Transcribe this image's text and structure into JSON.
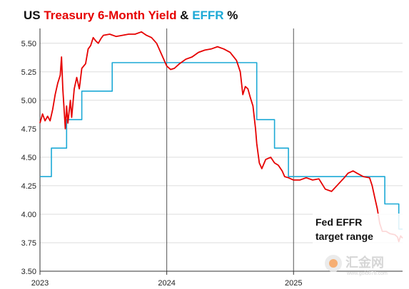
{
  "title": {
    "part1": "US ",
    "part2": "Treasury 6-Month Yield",
    "part3": " & ",
    "part4": "EFFR",
    "part5": " %",
    "colors": {
      "part1": "#111111",
      "part2": "#e60000",
      "part3": "#111111",
      "part4": "#1ca9d6",
      "part5": "#111111"
    }
  },
  "watermark": {
    "name": "汇金网",
    "url": "www.gold678.com"
  },
  "annotation": {
    "line1": "Fed EFFR",
    "line2": "target range"
  },
  "chart_data": {
    "type": "line",
    "title": "US Treasury 6-Month Yield & EFFR %",
    "xlim": [
      2023.0,
      2025.86
    ],
    "ylim": [
      3.5,
      5.63
    ],
    "yticks": [
      "5.50",
      "5.25",
      "5.00",
      "4.75",
      "4.50",
      "4.25",
      "4.00",
      "3.75",
      "3.50"
    ],
    "ytick_values": [
      5.5,
      5.25,
      5.0,
      4.75,
      4.5,
      4.25,
      4.0,
      3.75,
      3.5
    ],
    "xticks": [
      "2023",
      "2024",
      "2025"
    ],
    "xtick_values": [
      2023,
      2024,
      2025
    ],
    "grid": {
      "horizontal": true,
      "vertical": true
    },
    "series": [
      {
        "name": "EFFR",
        "color": "#1ca9d6",
        "step": true,
        "points": [
          [
            2023.0,
            4.33
          ],
          [
            2023.09,
            4.33
          ],
          [
            2023.09,
            4.58
          ],
          [
            2023.21,
            4.58
          ],
          [
            2023.21,
            4.83
          ],
          [
            2023.33,
            4.83
          ],
          [
            2023.33,
            5.08
          ],
          [
            2023.57,
            5.08
          ],
          [
            2023.57,
            5.33
          ],
          [
            2024.71,
            5.33
          ],
          [
            2024.71,
            4.83
          ],
          [
            2024.85,
            4.83
          ],
          [
            2024.85,
            4.58
          ],
          [
            2024.96,
            4.58
          ],
          [
            2024.96,
            4.33
          ],
          [
            2025.72,
            4.33
          ],
          [
            2025.72,
            4.09
          ],
          [
            2025.83,
            4.09
          ],
          [
            2025.83,
            3.87
          ],
          [
            2025.86,
            3.87
          ]
        ]
      },
      {
        "name": "Treasury 6-Month Yield",
        "color": "#e60000",
        "step": false,
        "points": [
          [
            2023.0,
            4.8
          ],
          [
            2023.02,
            4.88
          ],
          [
            2023.04,
            4.82
          ],
          [
            2023.06,
            4.86
          ],
          [
            2023.08,
            4.82
          ],
          [
            2023.1,
            4.92
          ],
          [
            2023.12,
            5.05
          ],
          [
            2023.14,
            5.15
          ],
          [
            2023.16,
            5.22
          ],
          [
            2023.17,
            5.38
          ],
          [
            2023.18,
            5.1
          ],
          [
            2023.2,
            4.75
          ],
          [
            2023.21,
            4.95
          ],
          [
            2023.22,
            4.8
          ],
          [
            2023.24,
            5.0
          ],
          [
            2023.25,
            4.85
          ],
          [
            2023.27,
            5.1
          ],
          [
            2023.29,
            5.2
          ],
          [
            2023.31,
            5.1
          ],
          [
            2023.33,
            5.28
          ],
          [
            2023.36,
            5.32
          ],
          [
            2023.38,
            5.45
          ],
          [
            2023.4,
            5.48
          ],
          [
            2023.42,
            5.55
          ],
          [
            2023.44,
            5.52
          ],
          [
            2023.46,
            5.5
          ],
          [
            2023.48,
            5.54
          ],
          [
            2023.5,
            5.57
          ],
          [
            2023.55,
            5.58
          ],
          [
            2023.6,
            5.56
          ],
          [
            2023.65,
            5.57
          ],
          [
            2023.7,
            5.58
          ],
          [
            2023.75,
            5.58
          ],
          [
            2023.8,
            5.6
          ],
          [
            2023.84,
            5.57
          ],
          [
            2023.88,
            5.55
          ],
          [
            2023.92,
            5.5
          ],
          [
            2023.96,
            5.4
          ],
          [
            2024.0,
            5.3
          ],
          [
            2024.03,
            5.27
          ],
          [
            2024.06,
            5.28
          ],
          [
            2024.1,
            5.32
          ],
          [
            2024.15,
            5.36
          ],
          [
            2024.2,
            5.38
          ],
          [
            2024.25,
            5.42
          ],
          [
            2024.3,
            5.44
          ],
          [
            2024.35,
            5.45
          ],
          [
            2024.4,
            5.47
          ],
          [
            2024.45,
            5.45
          ],
          [
            2024.5,
            5.42
          ],
          [
            2024.55,
            5.35
          ],
          [
            2024.58,
            5.25
          ],
          [
            2024.6,
            5.05
          ],
          [
            2024.62,
            5.12
          ],
          [
            2024.64,
            5.1
          ],
          [
            2024.66,
            5.02
          ],
          [
            2024.68,
            4.95
          ],
          [
            2024.7,
            4.75
          ],
          [
            2024.71,
            4.62
          ],
          [
            2024.73,
            4.45
          ],
          [
            2024.75,
            4.4
          ],
          [
            2024.78,
            4.48
          ],
          [
            2024.82,
            4.5
          ],
          [
            2024.85,
            4.45
          ],
          [
            2024.88,
            4.43
          ],
          [
            2024.91,
            4.38
          ],
          [
            2024.93,
            4.33
          ],
          [
            2024.96,
            4.32
          ],
          [
            2025.0,
            4.3
          ],
          [
            2025.05,
            4.3
          ],
          [
            2025.1,
            4.32
          ],
          [
            2025.15,
            4.3
          ],
          [
            2025.2,
            4.31
          ],
          [
            2025.25,
            4.22
          ],
          [
            2025.3,
            4.2
          ],
          [
            2025.35,
            4.26
          ],
          [
            2025.4,
            4.32
          ],
          [
            2025.43,
            4.36
          ],
          [
            2025.47,
            4.38
          ],
          [
            2025.5,
            4.36
          ],
          [
            2025.55,
            4.33
          ],
          [
            2025.6,
            4.32
          ],
          [
            2025.62,
            4.25
          ],
          [
            2025.64,
            4.15
          ],
          [
            2025.66,
            4.05
          ],
          [
            2025.68,
            3.92
          ],
          [
            2025.7,
            3.85
          ],
          [
            2025.73,
            3.85
          ],
          [
            2025.76,
            3.83
          ],
          [
            2025.8,
            3.82
          ],
          [
            2025.82,
            3.8
          ],
          [
            2025.83,
            3.76
          ],
          [
            2025.845,
            3.81
          ],
          [
            2025.86,
            3.79
          ]
        ]
      }
    ]
  }
}
